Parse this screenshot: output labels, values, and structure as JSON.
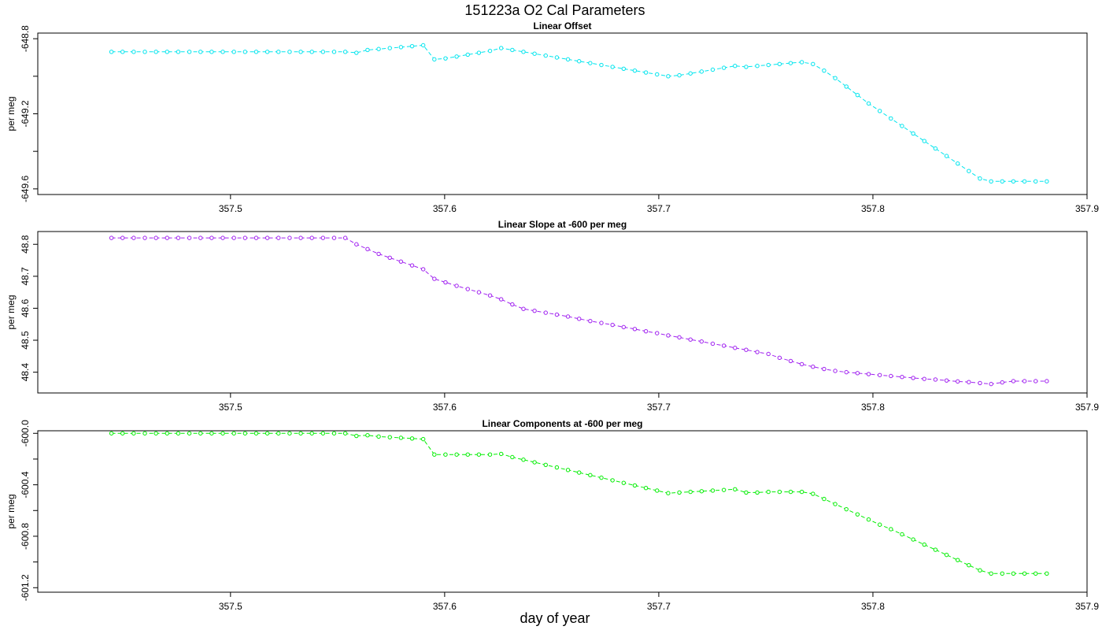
{
  "figure": {
    "title": "151223a   O2 Cal Parameters",
    "xlabel": "day of year"
  },
  "chart_data": [
    {
      "type": "line",
      "title": "Linear Offset",
      "ylabel": "per meg",
      "xlim": [
        357.41,
        357.9
      ],
      "ylim": [
        -649.63,
        -648.77
      ],
      "xticks": [
        357.5,
        357.6,
        357.7,
        357.8,
        357.9
      ],
      "xtick_labels": [
        "357.5",
        "357.6",
        "357.7",
        "357.8",
        "357.9"
      ],
      "yticks": [
        -648.8,
        -649.0,
        -649.2,
        -649.4,
        -649.6
      ],
      "ytick_labels": [
        "-648.8",
        "",
        "-649.2",
        "",
        "-649.6"
      ],
      "grid": false,
      "legend": "none",
      "series": [
        {
          "color": "#00e5ee",
          "x": [
            357.4444,
            357.4496,
            357.4548,
            357.46,
            357.4652,
            357.4704,
            357.4756,
            357.4808,
            357.486,
            357.4912,
            357.4964,
            357.5016,
            357.5068,
            357.512,
            357.5172,
            357.5224,
            357.5276,
            357.5328,
            357.538,
            357.5432,
            357.5484,
            357.5536,
            357.5588,
            357.564,
            357.5692,
            357.5744,
            357.5796,
            357.5848,
            357.59,
            357.5952,
            357.6004,
            357.6056,
            357.6108,
            357.616,
            357.6212,
            357.6264,
            357.6316,
            357.6368,
            357.642,
            357.6472,
            357.6524,
            357.6576,
            357.6628,
            357.668,
            357.6732,
            357.6784,
            357.6836,
            357.6888,
            357.694,
            357.6992,
            357.7044,
            357.7096,
            357.7148,
            357.72,
            357.7252,
            357.7304,
            357.7356,
            357.7408,
            357.746,
            357.7512,
            357.7564,
            357.7616,
            357.7668,
            357.772,
            357.7772,
            357.7824,
            357.7876,
            357.7928,
            357.798,
            357.8032,
            357.8084,
            357.8136,
            357.8188,
            357.824,
            357.8292,
            357.8344,
            357.8396,
            357.8448,
            357.85,
            357.8552,
            357.8604,
            357.8656,
            357.8708,
            357.876,
            357.8812
          ],
          "values": [
            -648.87,
            -648.87,
            -648.87,
            -648.87,
            -648.87,
            -648.87,
            -648.87,
            -648.87,
            -648.87,
            -648.87,
            -648.87,
            -648.87,
            -648.87,
            -648.87,
            -648.87,
            -648.87,
            -648.87,
            -648.87,
            -648.87,
            -648.87,
            -648.87,
            -648.87,
            -648.875,
            -648.86,
            -648.855,
            -648.85,
            -648.845,
            -648.84,
            -648.835,
            -648.91,
            -648.905,
            -648.895,
            -648.885,
            -648.875,
            -648.865,
            -648.85,
            -648.86,
            -648.87,
            -648.88,
            -648.89,
            -648.9,
            -648.91,
            -648.92,
            -648.93,
            -648.94,
            -648.95,
            -648.96,
            -648.97,
            -648.98,
            -648.99,
            -649.0,
            -648.995,
            -648.985,
            -648.975,
            -648.965,
            -648.955,
            -648.945,
            -648.95,
            -648.945,
            -648.94,
            -648.935,
            -648.93,
            -648.925,
            -648.935,
            -648.97,
            -649.01,
            -649.055,
            -649.1,
            -649.145,
            -649.185,
            -649.225,
            -649.265,
            -649.305,
            -649.345,
            -649.385,
            -649.425,
            -649.465,
            -649.505,
            -649.545,
            -649.56,
            -649.56,
            -649.56,
            -649.56,
            -649.56,
            -649.56
          ]
        }
      ]
    },
    {
      "type": "line",
      "title": "Linear Slope at -600 per meg",
      "ylabel": "per meg",
      "xlim": [
        357.41,
        357.9
      ],
      "ylim": [
        48.335,
        48.84
      ],
      "xticks": [
        357.5,
        357.6,
        357.7,
        357.8,
        357.9
      ],
      "xtick_labels": [
        "357.5",
        "357.6",
        "357.7",
        "357.8",
        "357.9"
      ],
      "yticks": [
        48.8,
        48.7,
        48.6,
        48.5,
        48.4
      ],
      "ytick_labels": [
        "48.8",
        "48.7",
        "48.6",
        "48.5",
        "48.4"
      ],
      "grid": false,
      "legend": "none",
      "series": [
        {
          "color": "#a020f0",
          "x": [
            357.4444,
            357.4496,
            357.4548,
            357.46,
            357.4652,
            357.4704,
            357.4756,
            357.4808,
            357.486,
            357.4912,
            357.4964,
            357.5016,
            357.5068,
            357.512,
            357.5172,
            357.5224,
            357.5276,
            357.5328,
            357.538,
            357.5432,
            357.5484,
            357.5536,
            357.5588,
            357.564,
            357.5692,
            357.5744,
            357.5796,
            357.5848,
            357.59,
            357.5952,
            357.6004,
            357.6056,
            357.6108,
            357.616,
            357.6212,
            357.6264,
            357.6316,
            357.6368,
            357.642,
            357.6472,
            357.6524,
            357.6576,
            357.6628,
            357.668,
            357.6732,
            357.6784,
            357.6836,
            357.6888,
            357.694,
            357.6992,
            357.7044,
            357.7096,
            357.7148,
            357.72,
            357.7252,
            357.7304,
            357.7356,
            357.7408,
            357.746,
            357.7512,
            357.7564,
            357.7616,
            357.7668,
            357.772,
            357.7772,
            357.7824,
            357.7876,
            357.7928,
            357.798,
            357.8032,
            357.8084,
            357.8136,
            357.8188,
            357.824,
            357.8292,
            357.8344,
            357.8396,
            357.8448,
            357.85,
            357.8552,
            357.8604,
            357.8656,
            357.8708,
            357.876,
            357.8812
          ],
          "values": [
            48.82,
            48.82,
            48.82,
            48.82,
            48.82,
            48.82,
            48.82,
            48.82,
            48.82,
            48.82,
            48.82,
            48.82,
            48.82,
            48.82,
            48.82,
            48.82,
            48.82,
            48.82,
            48.82,
            48.82,
            48.82,
            48.82,
            48.8,
            48.785,
            48.77,
            48.758,
            48.746,
            48.734,
            48.722,
            48.692,
            48.681,
            48.67,
            48.66,
            48.65,
            48.64,
            48.628,
            48.612,
            48.598,
            48.592,
            48.586,
            48.58,
            48.574,
            48.567,
            48.56,
            48.554,
            48.548,
            48.541,
            48.535,
            48.528,
            48.522,
            48.515,
            48.509,
            48.502,
            48.496,
            48.489,
            48.483,
            48.476,
            48.47,
            48.463,
            48.457,
            48.445,
            48.435,
            48.425,
            48.417,
            48.41,
            48.404,
            48.4,
            48.397,
            48.394,
            48.391,
            48.388,
            48.385,
            48.382,
            48.379,
            48.377,
            48.374,
            48.371,
            48.369,
            48.366,
            48.363,
            48.368,
            48.372,
            48.372,
            48.372,
            48.372
          ]
        }
      ]
    },
    {
      "type": "line",
      "title": "Linear Components at -600 per meg",
      "ylabel": "per meg",
      "xlim": [
        357.41,
        357.9
      ],
      "ylim": [
        -601.235,
        -599.98
      ],
      "xticks": [
        357.5,
        357.6,
        357.7,
        357.8,
        357.9
      ],
      "xtick_labels": [
        "357.5",
        "357.6",
        "357.7",
        "357.8",
        "357.9"
      ],
      "yticks": [
        -600.0,
        -600.2,
        -600.4,
        -600.6,
        -600.8,
        -601.0,
        -601.2
      ],
      "ytick_labels": [
        "-600.0",
        "",
        "-600.4",
        "",
        "-600.8",
        "",
        "-601.2"
      ],
      "grid": false,
      "legend": "none",
      "series": [
        {
          "color": "#00ee00",
          "x": [
            357.4444,
            357.4496,
            357.4548,
            357.46,
            357.4652,
            357.4704,
            357.4756,
            357.4808,
            357.486,
            357.4912,
            357.4964,
            357.5016,
            357.5068,
            357.512,
            357.5172,
            357.5224,
            357.5276,
            357.5328,
            357.538,
            357.5432,
            357.5484,
            357.5536,
            357.5588,
            357.564,
            357.5692,
            357.5744,
            357.5796,
            357.5848,
            357.59,
            357.5952,
            357.6004,
            357.6056,
            357.6108,
            357.616,
            357.6212,
            357.6264,
            357.6316,
            357.6368,
            357.642,
            357.6472,
            357.6524,
            357.6576,
            357.6628,
            357.668,
            357.6732,
            357.6784,
            357.6836,
            357.6888,
            357.694,
            357.6992,
            357.7044,
            357.7096,
            357.7148,
            357.72,
            357.7252,
            357.7304,
            357.7356,
            357.7408,
            357.746,
            357.7512,
            357.7564,
            357.7616,
            357.7668,
            357.772,
            357.7772,
            357.7824,
            357.7876,
            357.7928,
            357.798,
            357.8032,
            357.8084,
            357.8136,
            357.8188,
            357.824,
            357.8292,
            357.8344,
            357.8396,
            357.8448,
            357.85,
            357.8552,
            357.8604,
            357.8656,
            357.8708,
            357.876,
            357.8812
          ],
          "values": [
            -600.0,
            -600.0,
            -600.0,
            -600.0,
            -600.0,
            -600.0,
            -600.0,
            -600.0,
            -600.0,
            -600.0,
            -600.0,
            -600.0,
            -600.0,
            -600.0,
            -600.0,
            -600.0,
            -600.0,
            -600.0,
            -600.0,
            -600.0,
            -600.0,
            -600.0,
            -600.02,
            -600.015,
            -600.025,
            -600.03,
            -600.035,
            -600.04,
            -600.045,
            -600.165,
            -600.165,
            -600.165,
            -600.165,
            -600.165,
            -600.165,
            -600.16,
            -600.185,
            -600.205,
            -600.225,
            -600.245,
            -600.265,
            -600.285,
            -600.305,
            -600.325,
            -600.345,
            -600.365,
            -600.385,
            -600.405,
            -600.425,
            -600.445,
            -600.465,
            -600.46,
            -600.455,
            -600.45,
            -600.445,
            -600.44,
            -600.435,
            -600.46,
            -600.46,
            -600.455,
            -600.455,
            -600.455,
            -600.455,
            -600.47,
            -600.51,
            -600.55,
            -600.59,
            -600.63,
            -600.67,
            -600.71,
            -600.745,
            -600.785,
            -600.825,
            -600.865,
            -600.905,
            -600.945,
            -600.985,
            -601.025,
            -601.065,
            -601.09,
            -601.09,
            -601.09,
            -601.09,
            -601.09,
            -601.09
          ]
        }
      ]
    }
  ]
}
